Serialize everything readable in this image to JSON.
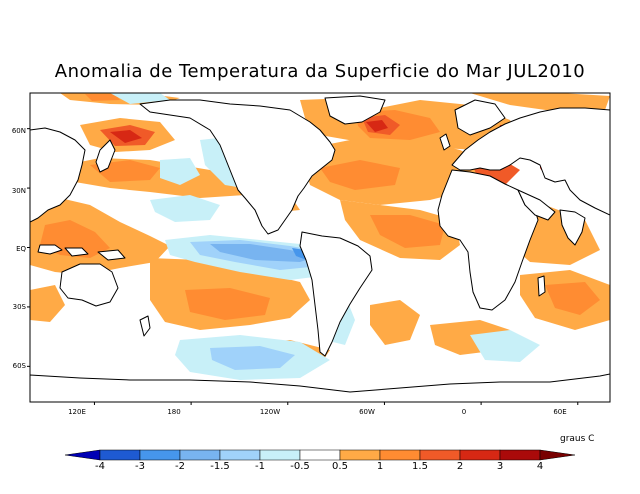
{
  "title": "Anomalia de Temperatura da Superficie do Mar JUL2010",
  "map": {
    "projection": "equirectangular",
    "lon_range": [
      20,
      380
    ],
    "lat_range": [
      -78,
      78
    ],
    "lat_ticks": [
      {
        "lat": 60,
        "label": "60N"
      },
      {
        "lat": 30,
        "label": "30N"
      },
      {
        "lat": 0,
        "label": "EQ"
      },
      {
        "lat": -30,
        "label": "30S"
      },
      {
        "lat": -60,
        "label": "60S"
      }
    ],
    "lon_ticks": [
      {
        "lon": 60,
        "label": "120E"
      },
      {
        "lon": 120,
        "label": "180"
      },
      {
        "lon": 180,
        "label": "120W"
      },
      {
        "lon": 240,
        "label": "60W"
      },
      {
        "lon": 300,
        "label": "0"
      },
      {
        "lon": 360,
        "label": "60E"
      }
    ]
  },
  "colorbar": {
    "units": "graus C",
    "levels": [
      "-4",
      "-3",
      "-2",
      "-1.5",
      "-1",
      "-0.5",
      "0.5",
      "1",
      "1.5",
      "2",
      "3",
      "4"
    ],
    "colors": [
      "#0000b4",
      "#1e5ad2",
      "#4696ec",
      "#78b4f0",
      "#a0d2fa",
      "#c8f0f8",
      "#ffffff",
      "#ffaa46",
      "#ff8c32",
      "#f05a28",
      "#d72814",
      "#aa0a0a",
      "#780000"
    ]
  }
}
